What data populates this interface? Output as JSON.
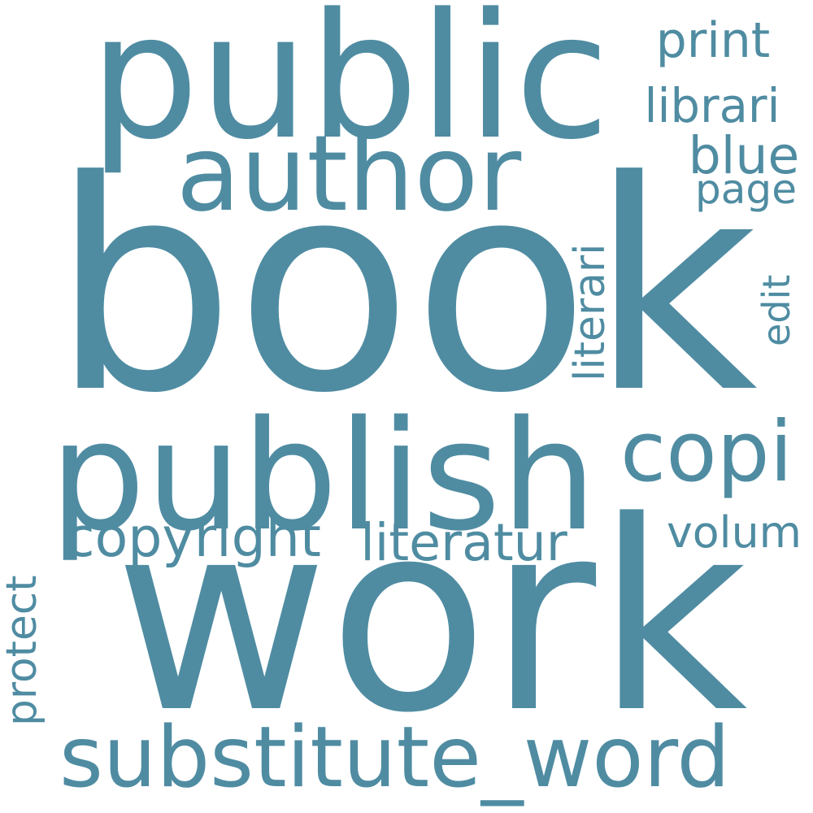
{
  "colors": {
    "background": "#ffffff",
    "word": "#4f8ca2"
  },
  "words": [
    {
      "id": "book",
      "text": "book"
    },
    {
      "id": "work",
      "text": "work"
    },
    {
      "id": "public",
      "text": "public"
    },
    {
      "id": "publish",
      "text": "publish"
    },
    {
      "id": "author",
      "text": "author"
    },
    {
      "id": "substitute_word",
      "text": "substitute_word"
    },
    {
      "id": "copi",
      "text": "copi"
    },
    {
      "id": "copyright",
      "text": "copyright"
    },
    {
      "id": "literatur",
      "text": "literatur"
    },
    {
      "id": "volum",
      "text": "volum"
    },
    {
      "id": "print",
      "text": "print"
    },
    {
      "id": "librari",
      "text": "librari"
    },
    {
      "id": "blue",
      "text": "blue"
    },
    {
      "id": "page",
      "text": "page"
    },
    {
      "id": "literari",
      "text": "literari"
    },
    {
      "id": "edit",
      "text": "edit"
    },
    {
      "id": "protect",
      "text": "protect"
    }
  ]
}
